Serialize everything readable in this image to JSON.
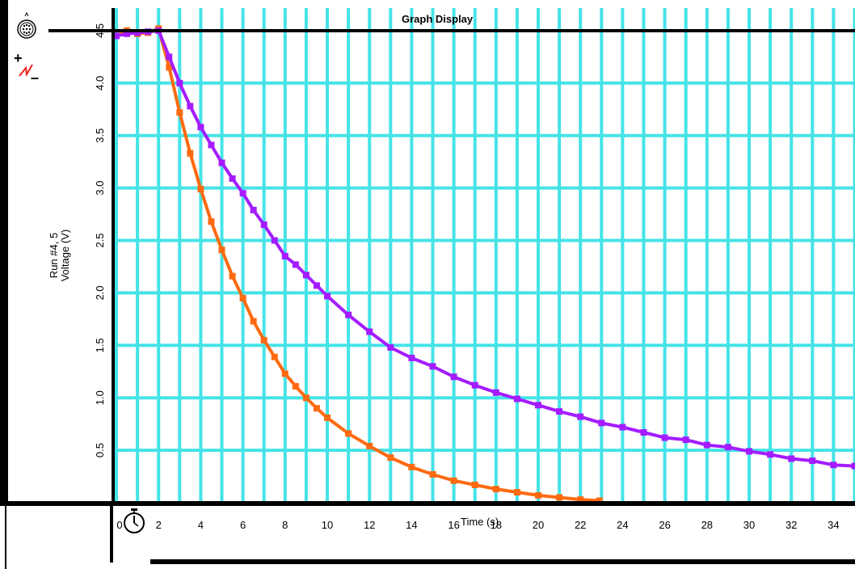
{
  "window": {
    "title": "Graph Display"
  },
  "colors": {
    "grid": "#45E3E8",
    "series1": "#FF6A10",
    "series2": "#A41CFF",
    "frame": "#000000",
    "bias_icon": "#E8211A"
  },
  "icons": {
    "sensor": "sensor-connector-icon",
    "bias": "bias-plus-minus-icon",
    "clock": "stopwatch-icon"
  },
  "chart_data": {
    "type": "scatter",
    "title": "Graph Display",
    "ylabel_line1": "Run #4, 5",
    "ylabel_line2": "Voltage (V)",
    "xlabel": "Time (s)",
    "xlim": [
      0,
      35.5
    ],
    "ylim": [
      0,
      4.5
    ],
    "grid": true,
    "x_ticks": [
      "0",
      "2",
      "4",
      "6",
      "8",
      "10",
      "12",
      "14",
      "16",
      "18",
      "20",
      "22",
      "24",
      "26",
      "28",
      "30",
      "32",
      "34"
    ],
    "y_ticks": [
      "0.5",
      "1.0",
      "1.5",
      "2.0",
      "2.5",
      "3.0",
      "3.5",
      "4.0",
      "4.5"
    ],
    "series": [
      {
        "name": "Run #4",
        "x": [
          0,
          0.5,
          1,
          1.5,
          2,
          2.5,
          3,
          3.5,
          4,
          4.5,
          5,
          5.5,
          6,
          6.5,
          7,
          7.5,
          8,
          8.5,
          9,
          9.5,
          10,
          11,
          12,
          13,
          14,
          15,
          16,
          17,
          18,
          19,
          20,
          21,
          22,
          22.9
        ],
        "values": [
          4.45,
          4.5,
          4.47,
          4.48,
          4.52,
          4.15,
          3.72,
          3.33,
          2.99,
          2.68,
          2.41,
          2.16,
          1.95,
          1.73,
          1.55,
          1.39,
          1.23,
          1.11,
          1.0,
          0.9,
          0.81,
          0.66,
          0.54,
          0.43,
          0.34,
          0.27,
          0.21,
          0.17,
          0.13,
          0.1,
          0.07,
          0.05,
          0.03,
          0.02
        ]
      },
      {
        "name": "Run #5",
        "x": [
          0,
          0.5,
          1,
          1.5,
          2,
          2.5,
          3,
          3.5,
          4,
          4.5,
          5,
          5.5,
          6,
          6.5,
          7,
          7.5,
          8,
          8.5,
          9,
          9.5,
          10,
          11,
          12,
          13,
          14,
          15,
          16,
          17,
          18,
          19,
          20,
          21,
          22,
          23,
          24,
          25,
          26,
          27,
          28,
          29,
          30,
          31,
          32,
          33,
          34,
          35
        ],
        "values": [
          4.45,
          4.47,
          4.48,
          4.49,
          4.5,
          4.25,
          4.0,
          3.78,
          3.58,
          3.41,
          3.24,
          3.09,
          2.95,
          2.79,
          2.65,
          2.5,
          2.35,
          2.27,
          2.17,
          2.07,
          1.97,
          1.79,
          1.63,
          1.48,
          1.38,
          1.3,
          1.2,
          1.12,
          1.05,
          0.99,
          0.93,
          0.87,
          0.82,
          0.76,
          0.72,
          0.67,
          0.62,
          0.6,
          0.55,
          0.53,
          0.49,
          0.46,
          0.42,
          0.4,
          0.36,
          0.35
        ]
      }
    ]
  }
}
